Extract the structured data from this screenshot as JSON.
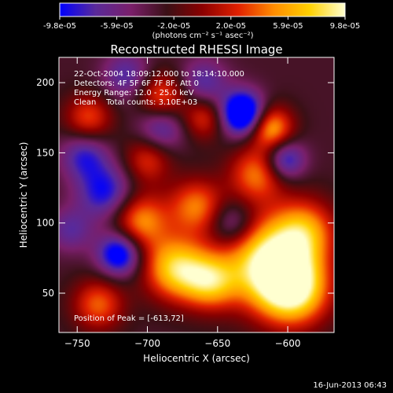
{
  "colors": {
    "background": "#000000",
    "foreground": "#ffffff",
    "colormap": [
      "#0000ff",
      "#5a2a9a",
      "#7a1f6a",
      "#3a1016",
      "#8b0000",
      "#e02000",
      "#ff8c00",
      "#ffd000",
      "#ffffd0"
    ]
  },
  "colorbar": {
    "ticks": [
      "-9.8e-05",
      "-5.9e-05",
      "-2.0e-05",
      "2.0e-05",
      "5.9e-05",
      "9.8e-05"
    ],
    "unit_text": "(photons cm⁻² s⁻¹ asec⁻²)"
  },
  "footer_timestamp": "16-Jun-2013 06:43",
  "chart_data": {
    "type": "heatmap",
    "title": "Reconstructed RHESSI Image",
    "xlabel": "Heliocentric X (arcsec)",
    "ylabel": "Heliocentric Y (arcsec)",
    "xlim": [
      -763,
      -567
    ],
    "ylim": [
      22,
      218
    ],
    "x_ticks": [
      {
        "value": -750,
        "label": "−750"
      },
      {
        "value": -700,
        "label": "−700"
      },
      {
        "value": -650,
        "label": "−650"
      },
      {
        "value": -600,
        "label": "−600"
      }
    ],
    "y_ticks": [
      {
        "value": 50,
        "label": "50"
      },
      {
        "value": 100,
        "label": "100"
      },
      {
        "value": 150,
        "label": "150"
      },
      {
        "value": 200,
        "label": "200"
      }
    ],
    "value_range": [
      -9.8e-05,
      9.8e-05
    ],
    "annotations": [
      "22-Oct-2004 18:09:12.000 to 18:14:10.000",
      "Detectors: 4F 5F 6F 7F 8F, Att 0",
      "Energy Range: 12.0 - 25.0 keV",
      "Clean    Total counts: 3.10E+03"
    ],
    "peak_text": "Position of Peak = [-613,72]",
    "sources": [
      {
        "x": -613,
        "y": 72,
        "amp": 1.0,
        "sigma": 22
      },
      {
        "x": -596,
        "y": 52,
        "amp": 0.9,
        "sigma": 18
      },
      {
        "x": -588,
        "y": 95,
        "amp": 0.6,
        "sigma": 16
      },
      {
        "x": -680,
        "y": 68,
        "amp": 0.85,
        "sigma": 16
      },
      {
        "x": -655,
        "y": 58,
        "amp": 0.7,
        "sigma": 14
      },
      {
        "x": -705,
        "y": 102,
        "amp": 0.65,
        "sigma": 14
      },
      {
        "x": -665,
        "y": 112,
        "amp": 0.6,
        "sigma": 14
      },
      {
        "x": -735,
        "y": 42,
        "amp": 0.55,
        "sigma": 13
      },
      {
        "x": -622,
        "y": 135,
        "amp": 0.6,
        "sigma": 14
      },
      {
        "x": -612,
        "y": 168,
        "amp": 0.75,
        "sigma": 11
      },
      {
        "x": -690,
        "y": 190,
        "amp": 0.55,
        "sigma": 12
      },
      {
        "x": -660,
        "y": 175,
        "amp": 0.45,
        "sigma": 11
      },
      {
        "x": -742,
        "y": 175,
        "amp": 0.5,
        "sigma": 12
      },
      {
        "x": -700,
        "y": 145,
        "amp": 0.45,
        "sigma": 12
      },
      {
        "x": -730,
        "y": 122,
        "amp": -0.55,
        "sigma": 14
      },
      {
        "x": -720,
        "y": 78,
        "amp": -0.75,
        "sigma": 11
      },
      {
        "x": -632,
        "y": 178,
        "amp": -1.0,
        "sigma": 11
      },
      {
        "x": -602,
        "y": 145,
        "amp": -0.6,
        "sigma": 10
      },
      {
        "x": -745,
        "y": 148,
        "amp": -0.45,
        "sigma": 12
      },
      {
        "x": -690,
        "y": 168,
        "amp": -0.45,
        "sigma": 12
      },
      {
        "x": -660,
        "y": 200,
        "amp": -0.4,
        "sigma": 12
      },
      {
        "x": -715,
        "y": 205,
        "amp": -0.4,
        "sigma": 12
      },
      {
        "x": -640,
        "y": 100,
        "amp": -0.4,
        "sigma": 11
      },
      {
        "x": -755,
        "y": 95,
        "amp": -0.35,
        "sigma": 11
      }
    ]
  }
}
